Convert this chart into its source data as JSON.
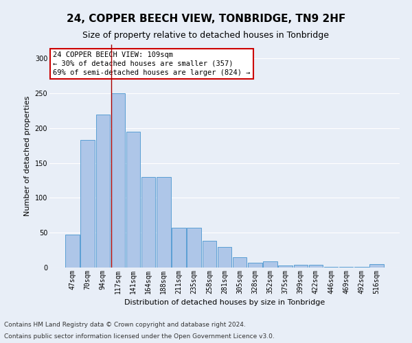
{
  "title": "24, COPPER BEECH VIEW, TONBRIDGE, TN9 2HF",
  "subtitle": "Size of property relative to detached houses in Tonbridge",
  "xlabel": "Distribution of detached houses by size in Tonbridge",
  "ylabel": "Number of detached properties",
  "categories": [
    "47sqm",
    "70sqm",
    "94sqm",
    "117sqm",
    "141sqm",
    "164sqm",
    "188sqm",
    "211sqm",
    "235sqm",
    "258sqm",
    "281sqm",
    "305sqm",
    "328sqm",
    "352sqm",
    "375sqm",
    "399sqm",
    "422sqm",
    "446sqm",
    "469sqm",
    "492sqm",
    "516sqm"
  ],
  "values": [
    47,
    183,
    220,
    250,
    195,
    130,
    130,
    57,
    57,
    38,
    30,
    15,
    7,
    9,
    3,
    4,
    4,
    1,
    1,
    1,
    5
  ],
  "bar_color": "#aec6e8",
  "bar_edge_color": "#5a9fd4",
  "redline_index": 3,
  "annotation_text": "24 COPPER BEECH VIEW: 109sqm\n← 30% of detached houses are smaller (357)\n69% of semi-detached houses are larger (824) →",
  "annotation_box_color": "white",
  "annotation_box_edge_color": "#cc0000",
  "footnote_line1": "Contains HM Land Registry data © Crown copyright and database right 2024.",
  "footnote_line2": "Contains public sector information licensed under the Open Government Licence v3.0.",
  "ylim": [
    0,
    320
  ],
  "yticks": [
    0,
    50,
    100,
    150,
    200,
    250,
    300
  ],
  "background_color": "#e8eef7",
  "grid_color": "white",
  "title_fontsize": 11,
  "subtitle_fontsize": 9,
  "axis_label_fontsize": 8,
  "tick_fontsize": 7,
  "annotation_fontsize": 7.5
}
